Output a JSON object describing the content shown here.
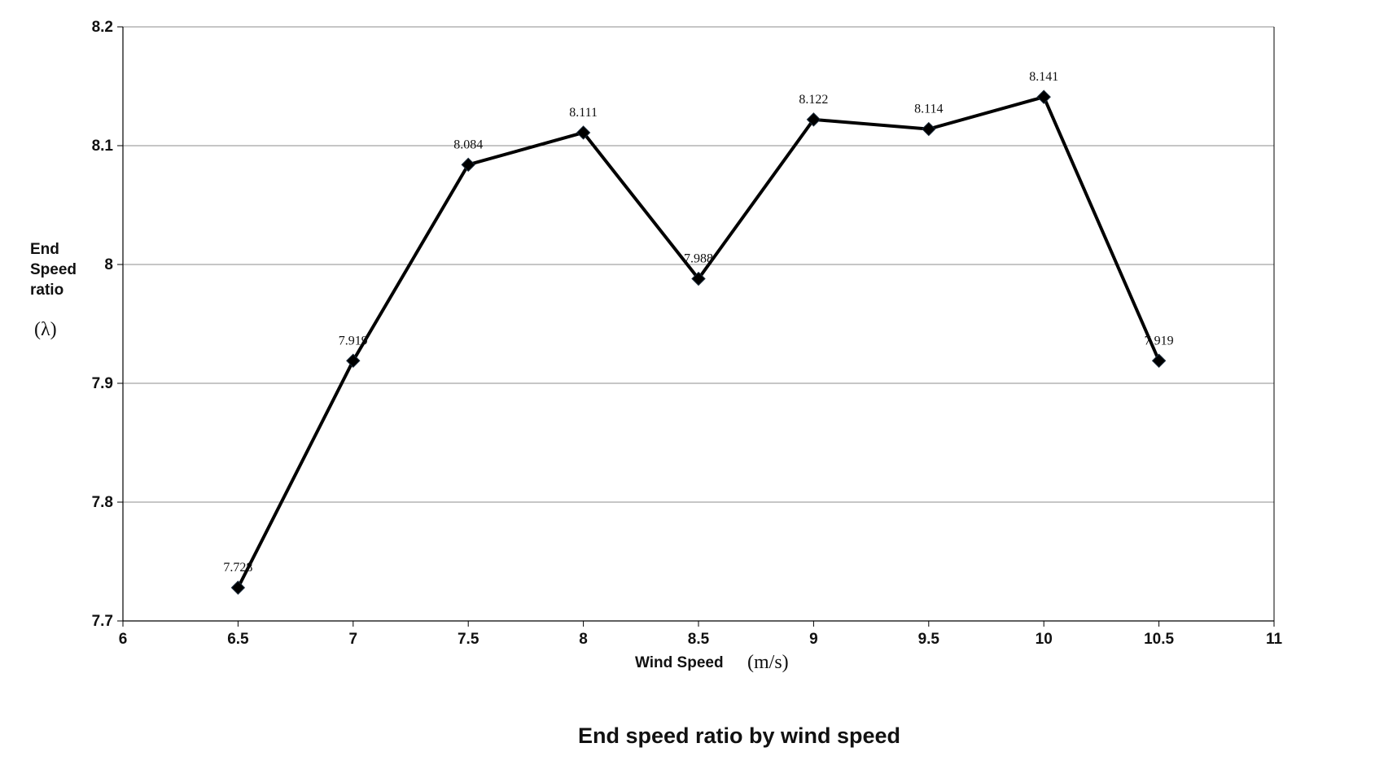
{
  "chart_data": {
    "type": "line",
    "title": "End speed ratio by wind speed",
    "xlabel": "Wind Speed",
    "xlabel_unit": "(m/s)",
    "ylabel_lines": [
      "End",
      "Speed",
      "ratio"
    ],
    "ylabel_symbol": "(λ)",
    "xlim": [
      6,
      11
    ],
    "ylim": [
      7.7,
      8.2
    ],
    "x_ticks": [
      "6",
      "6.5",
      "7",
      "7.5",
      "8",
      "8.5",
      "9",
      "9.5",
      "10",
      "10.5",
      "11"
    ],
    "x_tick_values": [
      6,
      6.5,
      7,
      7.5,
      8,
      8.5,
      9,
      9.5,
      10,
      10.5,
      11
    ],
    "y_ticks": [
      "7.7",
      "7.8",
      "7.9",
      "8",
      "8.1",
      "8.2"
    ],
    "y_tick_values": [
      7.7,
      7.8,
      7.9,
      8.0,
      8.1,
      8.2
    ],
    "grid": "horizontal",
    "legend": "none",
    "marker": "diamond",
    "line_color": "#000000",
    "series": [
      {
        "x": [
          6.5,
          7,
          7.5,
          8,
          8.5,
          9,
          9.5,
          10,
          10.5
        ],
        "y": [
          7.728,
          7.919,
          8.084,
          8.111,
          7.988,
          8.122,
          8.114,
          8.141,
          7.919
        ],
        "labels": [
          "7.728",
          "7.919",
          "8.084",
          "8.111",
          "7.988",
          "8.122",
          "8.114",
          "8.141",
          "7.919"
        ]
      }
    ]
  }
}
